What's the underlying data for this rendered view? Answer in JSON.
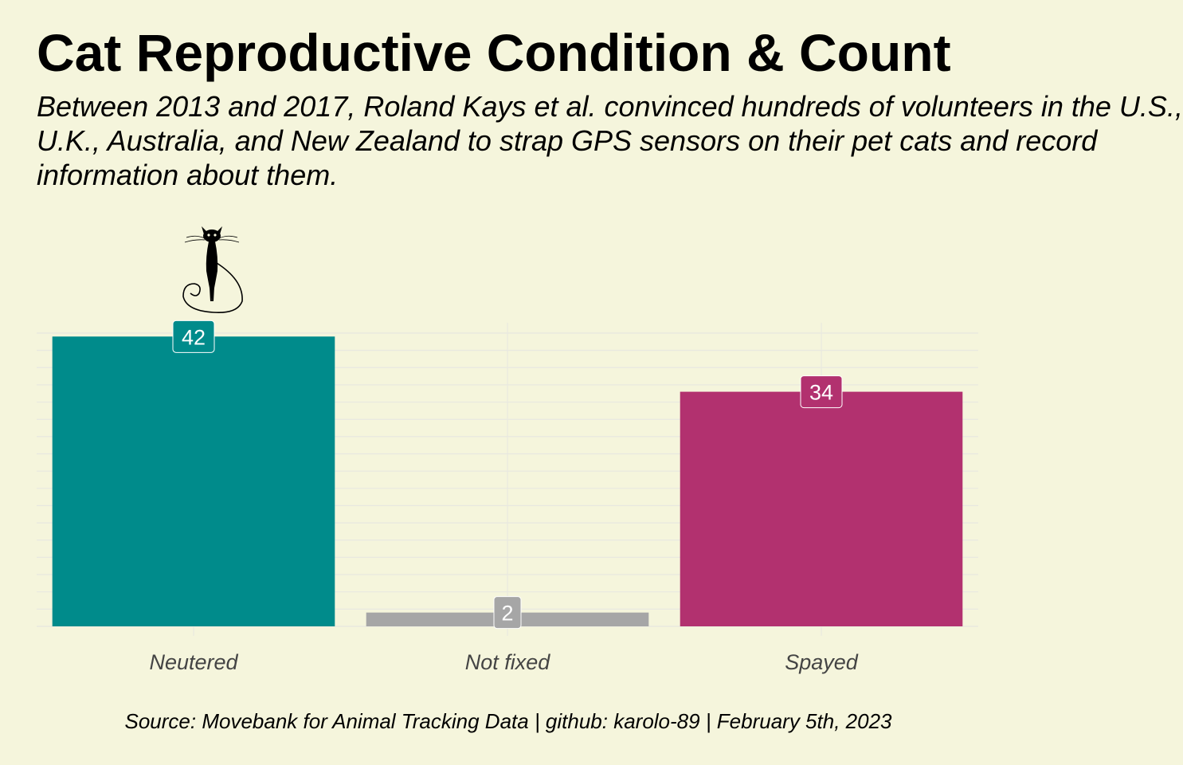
{
  "title": "Cat Reproductive Condition & Count",
  "subtitle": "Between 2013 and 2017, Roland Kays et al. convinced hundreds of volunteers in the U.S.,\nU.K., Australia, and New Zealand to strap GPS sensors on their pet cats and record\ninformation about them.",
  "caption": "Source: Movebank for Animal Tracking Data | github: karolo-89 | February 5th, 2023",
  "icon": "black-cat-icon",
  "colors": {
    "background": "#f5f5dc",
    "grid": "#e8e8e0",
    "neutered": "#008b8b",
    "not_fixed": "#a6a6a6",
    "spayed": "#b2316f"
  },
  "chart_data": {
    "type": "bar",
    "categories": [
      "Neutered",
      "Not fixed",
      "Spayed"
    ],
    "values": [
      42,
      2,
      34
    ],
    "bar_colors": [
      "#008b8b",
      "#a6a6a6",
      "#b2316f"
    ],
    "data_labels": [
      "42",
      "2",
      "34"
    ],
    "ylim": [
      0,
      44
    ],
    "grid": true,
    "legend": "none",
    "xlabel": "",
    "ylabel": ""
  }
}
